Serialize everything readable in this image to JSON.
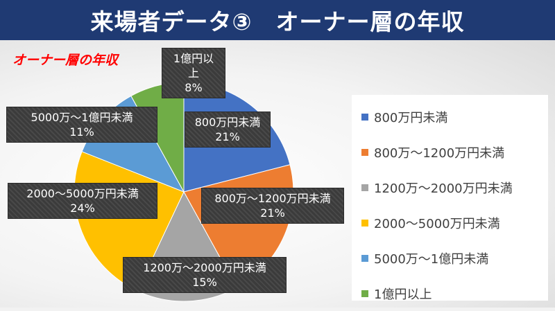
{
  "header": {
    "title": "来場者データ③　オーナー層の年収"
  },
  "chart_data": {
    "type": "pie",
    "title": "オーナー層の年収",
    "categories": [
      "800万円未満",
      "800万～1200万円未満",
      "1200万～2000万円未満",
      "2000～5000万円未満",
      "5000万～1億円未満",
      "1億円以上"
    ],
    "values": [
      21,
      21,
      15,
      24,
      11,
      8
    ],
    "value_labels": [
      "21%",
      "21%",
      "15%",
      "24%",
      "11%",
      "8%"
    ],
    "colors": [
      "#4472c4",
      "#ed7d31",
      "#a5a5a5",
      "#ffc000",
      "#5b9bd5",
      "#70ad47"
    ],
    "legend": "right"
  }
}
